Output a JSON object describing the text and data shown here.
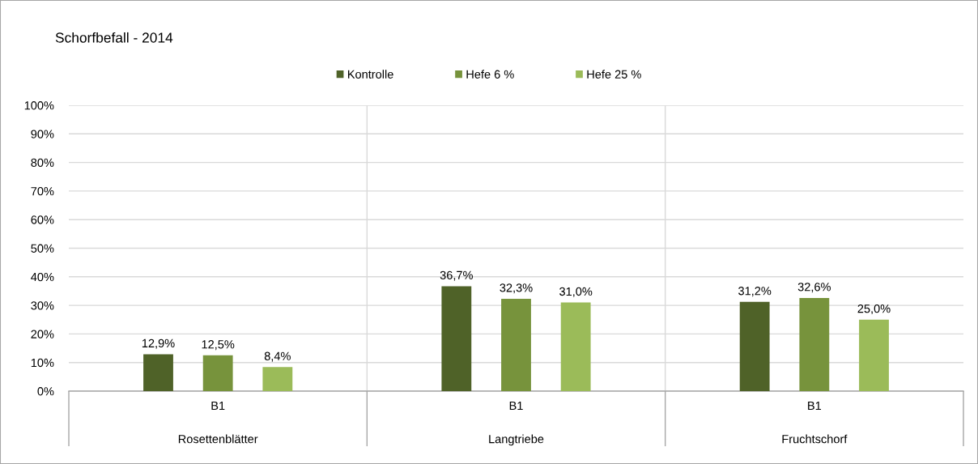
{
  "chart_data": {
    "type": "bar",
    "title": "Schorfbefall - 2014",
    "categories": [
      "B1",
      "B1",
      "B1"
    ],
    "annotations": [
      "Rosettenblätter",
      "Langtriebe",
      "Fruchtschorf"
    ],
    "series": [
      {
        "name": "Kontrolle",
        "color": "#4f6228",
        "values": [
          12.9,
          36.7,
          31.2
        ],
        "value_labels": [
          "12,9%",
          "36,7%",
          "31,2%"
        ]
      },
      {
        "name": "Hefe 6 %",
        "color": "#77933c",
        "values": [
          12.5,
          32.3,
          32.6
        ],
        "value_labels": [
          "12,5%",
          "32,3%",
          "32,6%"
        ]
      },
      {
        "name": "Hefe 25 %",
        "color": "#9bbb59",
        "values": [
          8.4,
          31.0,
          25.0
        ],
        "value_labels": [
          "8,4%",
          "31,0%",
          "25,0%"
        ]
      }
    ],
    "ylim": [
      0,
      100
    ],
    "yticks": [
      {
        "value": 0,
        "label": "0%"
      },
      {
        "value": 10,
        "label": "10%"
      },
      {
        "value": 20,
        "label": "20%"
      },
      {
        "value": 30,
        "label": "30%"
      },
      {
        "value": 40,
        "label": "40%"
      },
      {
        "value": 50,
        "label": "50%"
      },
      {
        "value": 60,
        "label": "60%"
      },
      {
        "value": 70,
        "label": "70%"
      },
      {
        "value": 80,
        "label": "80%"
      },
      {
        "value": 90,
        "label": "90%"
      },
      {
        "value": 100,
        "label": "100%"
      }
    ],
    "grid": true,
    "legend": "top"
  }
}
